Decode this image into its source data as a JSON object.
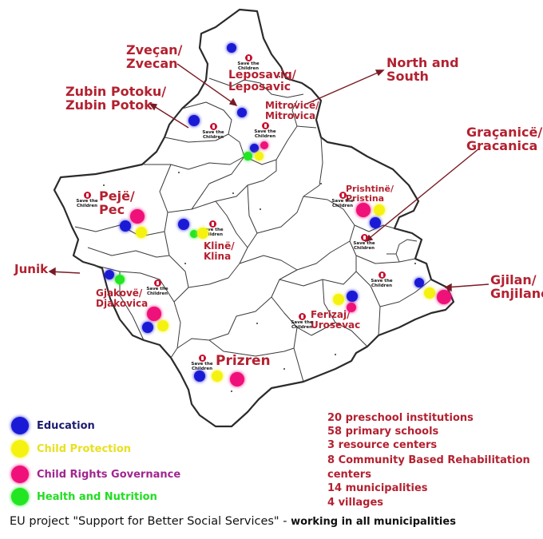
{
  "colors": {
    "label": "#b32130",
    "education": "#1a1ad6",
    "child_protection": "#f5f210",
    "child_rights_governance": "#f0107a",
    "health_nutrition": "#22e622"
  },
  "places": {
    "zvecan": "Zveçan/\nZvecan",
    "leposaviq": "Leposaviq/\nLeposavic",
    "north_south": "North and\nSouth",
    "zubin_potok": "Zubin Potoku/\nZubin Potok",
    "mitrovice": "Mitrovicë/\nMitrovica",
    "gracanice": "Graçanicë/\nGracanica",
    "prishtine": "Prishtinë/\nPristina",
    "peje": "Pejë/\nPec",
    "kline": "Klinë/\nKlina",
    "junik": "Junik",
    "gjakove": "Gjakovë/\nDjakovica",
    "gjilan": "Gjilan/\nGnjilane",
    "ferizaj": "Ferizaj/\nUrosevac",
    "prizren": "Prizren"
  },
  "logo_text": "Save the\nChildren",
  "legend": [
    {
      "label": "Education",
      "color": "#1a1ad6",
      "text_color": "#1c1c6e"
    },
    {
      "label": "Child Protection",
      "color": "#f5f210",
      "text_color": "#e8e020"
    },
    {
      "label": "Child Rights Governance",
      "color": "#f0107a",
      "text_color": "#a0268f"
    },
    {
      "label": "Health and Nutrition",
      "color": "#22e622",
      "text_color": "#22dd22"
    }
  ],
  "stats": [
    "20 preschool institutions",
    "58 primary schools",
    "3 resource centers",
    "8 Community Based Rehabilitation",
    "centers",
    "14 municipalities",
    "4 villages"
  ],
  "footer": {
    "main": "EU project \"Support for Better Social Services\" - ",
    "bold": "working in all municipalities"
  }
}
